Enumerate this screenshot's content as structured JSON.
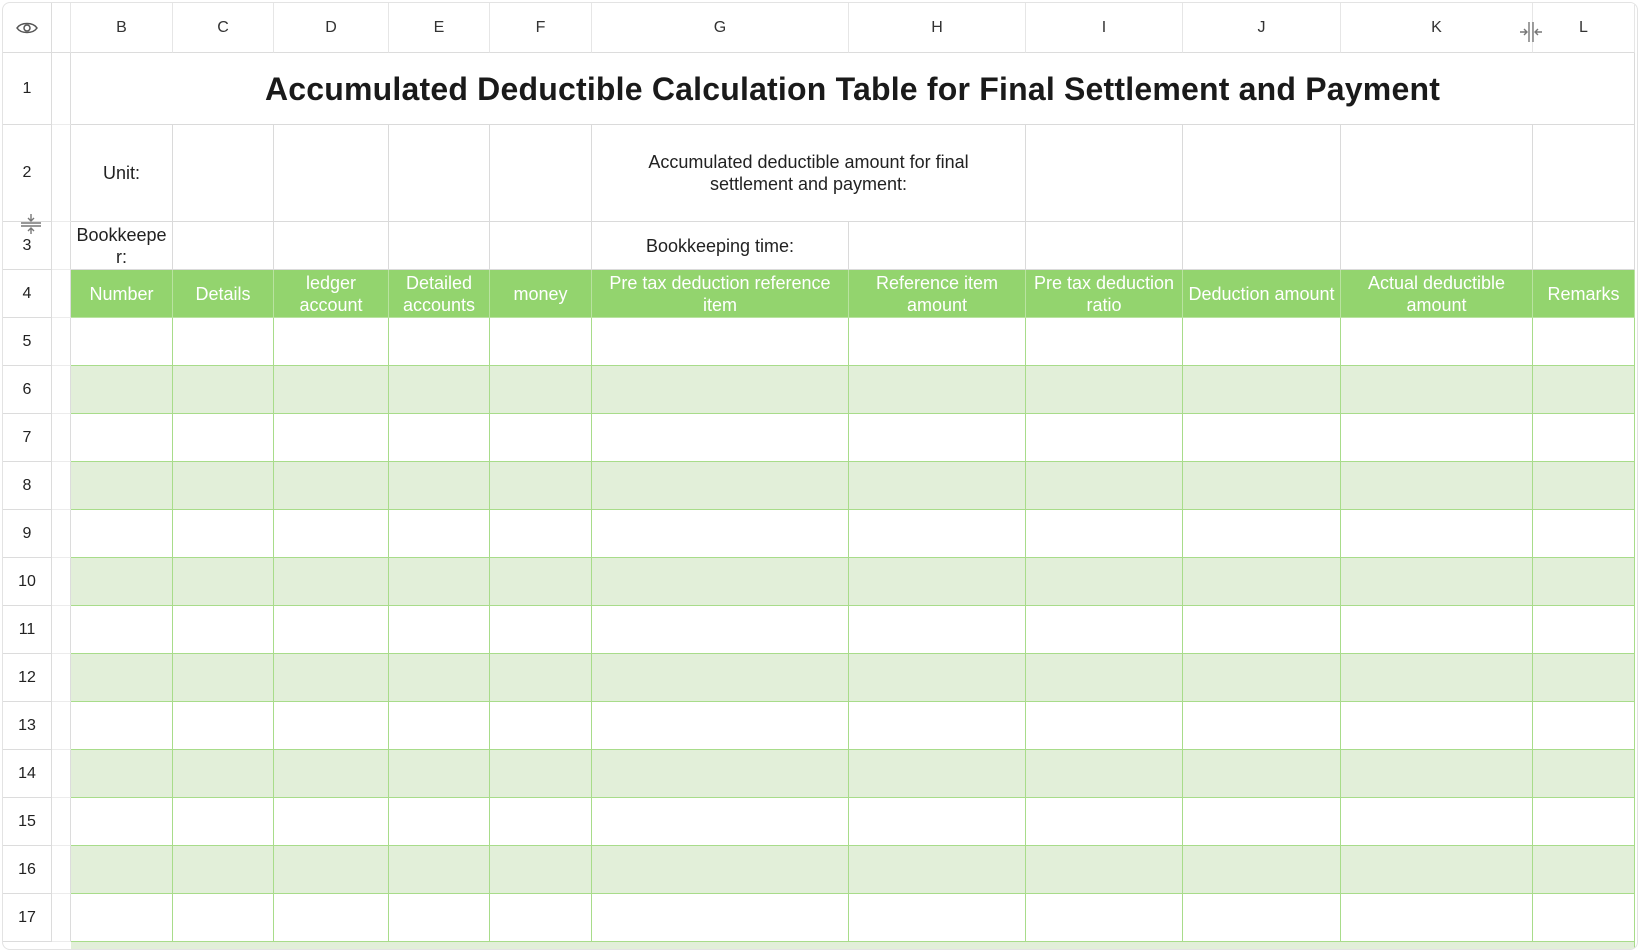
{
  "columns": [
    "B",
    "C",
    "D",
    "E",
    "F",
    "G",
    "H",
    "I",
    "J",
    "K",
    "L"
  ],
  "rows": [
    "1",
    "2",
    "3",
    "4",
    "5",
    "6",
    "7",
    "8",
    "9",
    "10",
    "11",
    "12",
    "13",
    "14",
    "15",
    "16",
    "17"
  ],
  "sheet": {
    "title": "Accumulated Deductible Calculation Table for Final Settlement and Payment",
    "unit_label": "Unit:",
    "accumulated_label": "Accumulated deductible amount for final settlement and payment:",
    "bookkeeper_label": "Bookkeeper:",
    "bookkeeping_time_label": "Bookkeeping time:",
    "headers": [
      "Number",
      "Details",
      "ledger account",
      "Detailed accounts",
      "money",
      "Pre tax deduction reference item",
      "Reference item amount",
      "Pre tax deduction ratio",
      "Deduction amount",
      "Actual deductible amount",
      "Remarks"
    ]
  },
  "colors": {
    "header_green": "#93d46e",
    "stripe_green": "#e2efd9",
    "grid_green": "#a8dc8a"
  },
  "icons": {
    "visibility": "eye-icon",
    "column_resize": "column-resize-icon",
    "row_resize": "row-resize-icon"
  }
}
